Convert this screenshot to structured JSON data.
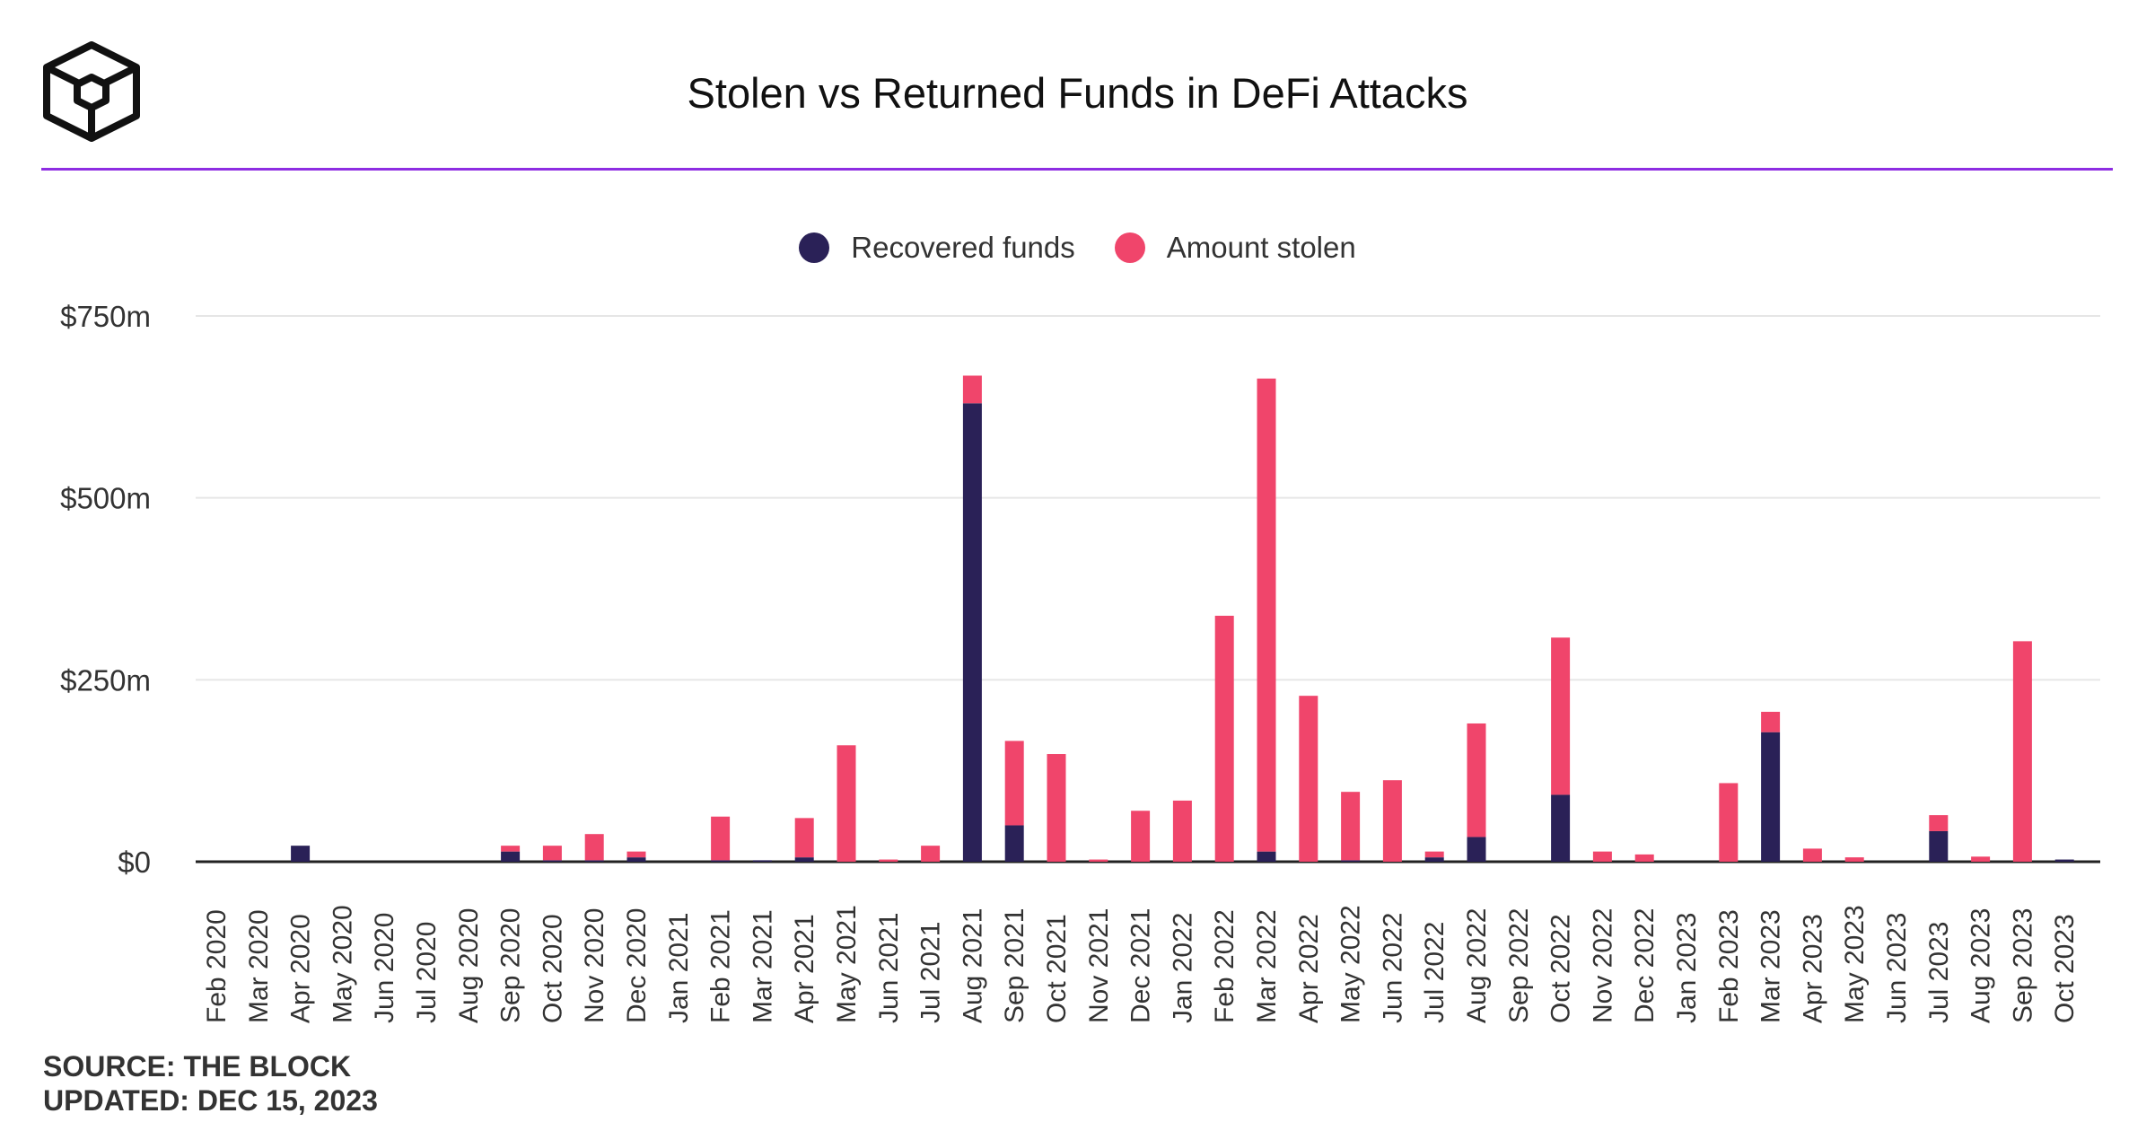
{
  "title": "Stolen vs Returned Funds in DeFi Attacks",
  "logo": {
    "icon": "the-block-cube-logo"
  },
  "legend": [
    {
      "label": "Recovered funds",
      "color": "#2a2157"
    },
    {
      "label": "Amount stolen",
      "color": "#f0456b"
    }
  ],
  "source": "SOURCE: THE BLOCK",
  "updated": "UPDATED: DEC 15, 2023",
  "colors": {
    "accent": "#8e2de2",
    "recovered": "#2a2157",
    "stolen": "#f0456b",
    "grid": "#e6e6e6"
  },
  "chart_data": {
    "type": "bar",
    "stacked": true,
    "title": "Stolen vs Returned Funds in DeFi Attacks",
    "xlabel": "",
    "ylabel": "",
    "ylim": [
      0,
      750
    ],
    "unit": "$m",
    "yticks": [
      {
        "value": 0,
        "label": "$0"
      },
      {
        "value": 250,
        "label": "$250m"
      },
      {
        "value": 500,
        "label": "$500m"
      },
      {
        "value": 750,
        "label": "$750m"
      }
    ],
    "categories": [
      "Feb 2020",
      "Mar 2020",
      "Apr 2020",
      "May 2020",
      "Jun 2020",
      "Jul 2020",
      "Aug 2020",
      "Sep 2020",
      "Oct 2020",
      "Nov 2020",
      "Dec 2020",
      "Jan 2021",
      "Feb 2021",
      "Mar 2021",
      "Apr 2021",
      "May 2021",
      "Jun 2021",
      "Jul 2021",
      "Aug 2021",
      "Sep 2021",
      "Oct 2021",
      "Nov 2021",
      "Dec 2021",
      "Jan 2022",
      "Feb 2022",
      "Mar 2022",
      "Apr 2022",
      "May 2022",
      "Jun 2022",
      "Jul 2022",
      "Aug 2022",
      "Sep 2022",
      "Oct 2022",
      "Nov 2022",
      "Dec 2022",
      "Jan 2023",
      "Feb 2023",
      "Mar 2023",
      "Apr 2023",
      "May 2023",
      "Jun 2023",
      "Jul 2023",
      "Aug 2023",
      "Sep 2023",
      "Oct 2023"
    ],
    "series": [
      {
        "name": "Recovered funds",
        "values": [
          0,
          0,
          22,
          0,
          0,
          0,
          0,
          14,
          2,
          2,
          6,
          0,
          2,
          2,
          6,
          0,
          0,
          0,
          630,
          50,
          0,
          0,
          0,
          0,
          0,
          14,
          0,
          2,
          0,
          6,
          34,
          0,
          92,
          0,
          0,
          0,
          0,
          178,
          0,
          0,
          0,
          42,
          0,
          0,
          3
        ]
      },
      {
        "name": "Amount stolen",
        "values": [
          0,
          0,
          0,
          0,
          0,
          0,
          0,
          8,
          20,
          36,
          8,
          0,
          60,
          0,
          54,
          160,
          3,
          22,
          38,
          116,
          148,
          3,
          70,
          84,
          338,
          650,
          228,
          94,
          112,
          8,
          156,
          0,
          216,
          14,
          10,
          0,
          108,
          28,
          18,
          6,
          0,
          22,
          7,
          303,
          0
        ]
      }
    ]
  }
}
